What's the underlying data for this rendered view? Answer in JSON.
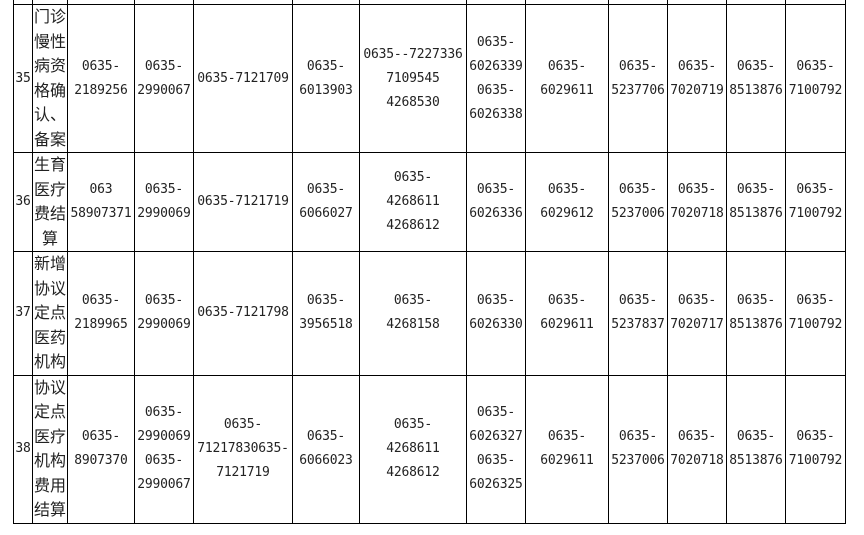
{
  "rows": [
    {
      "no": "35",
      "name": "门诊\n慢性\n病资\n格确\n认、\n备案",
      "cells": [
        "0635-\n2189256",
        "0635-\n2990067",
        "0635-7121709",
        "0635-\n6013903",
        "0635--7227336\n7109545\n4268530",
        "0635-\n6026339\n0635-\n6026338",
        "0635-\n6029611",
        "0635-\n5237706",
        "0635-\n7020719",
        "0635-\n8513876",
        "0635-\n7100792"
      ]
    },
    {
      "no": "36",
      "name": "生育\n医疗\n费结\n算",
      "cells": [
        "063\n58907371",
        "0635-\n2990069",
        "0635-7121719",
        "0635-\n6066027",
        "0635-\n4268611\n4268612",
        "0635-\n6026336",
        "0635-\n6029612",
        "0635-\n5237006",
        "0635-\n7020718",
        "0635-\n8513876",
        "0635-\n7100792"
      ]
    },
    {
      "no": "37",
      "name": "新增\n协议\n定点\n医药\n机构",
      "cells": [
        "0635-\n2189965",
        "0635-\n2990069",
        "0635-7121798",
        "0635-\n3956518",
        "0635-\n4268158",
        "0635-\n6026330",
        "0635-\n6029611",
        "0635-\n5237837",
        "0635-\n7020717",
        "0635-\n8513876",
        "0635-\n7100792"
      ]
    },
    {
      "no": "38",
      "name": "协议\n定点\n医疗\n机构\n费用\n结算",
      "cells": [
        "0635-\n8907370",
        "0635-\n2990069\n0635-\n2990067",
        "0635-\n71217830635-\n7121719",
        "0635-\n6066023",
        "0635-\n4268611\n4268612",
        "0635-\n6026327\n0635-\n6026325",
        "0635-\n6029611",
        "0635-\n5237006",
        "0635-\n7020718",
        "0635-\n8513876",
        "0635-\n7100792"
      ]
    }
  ]
}
